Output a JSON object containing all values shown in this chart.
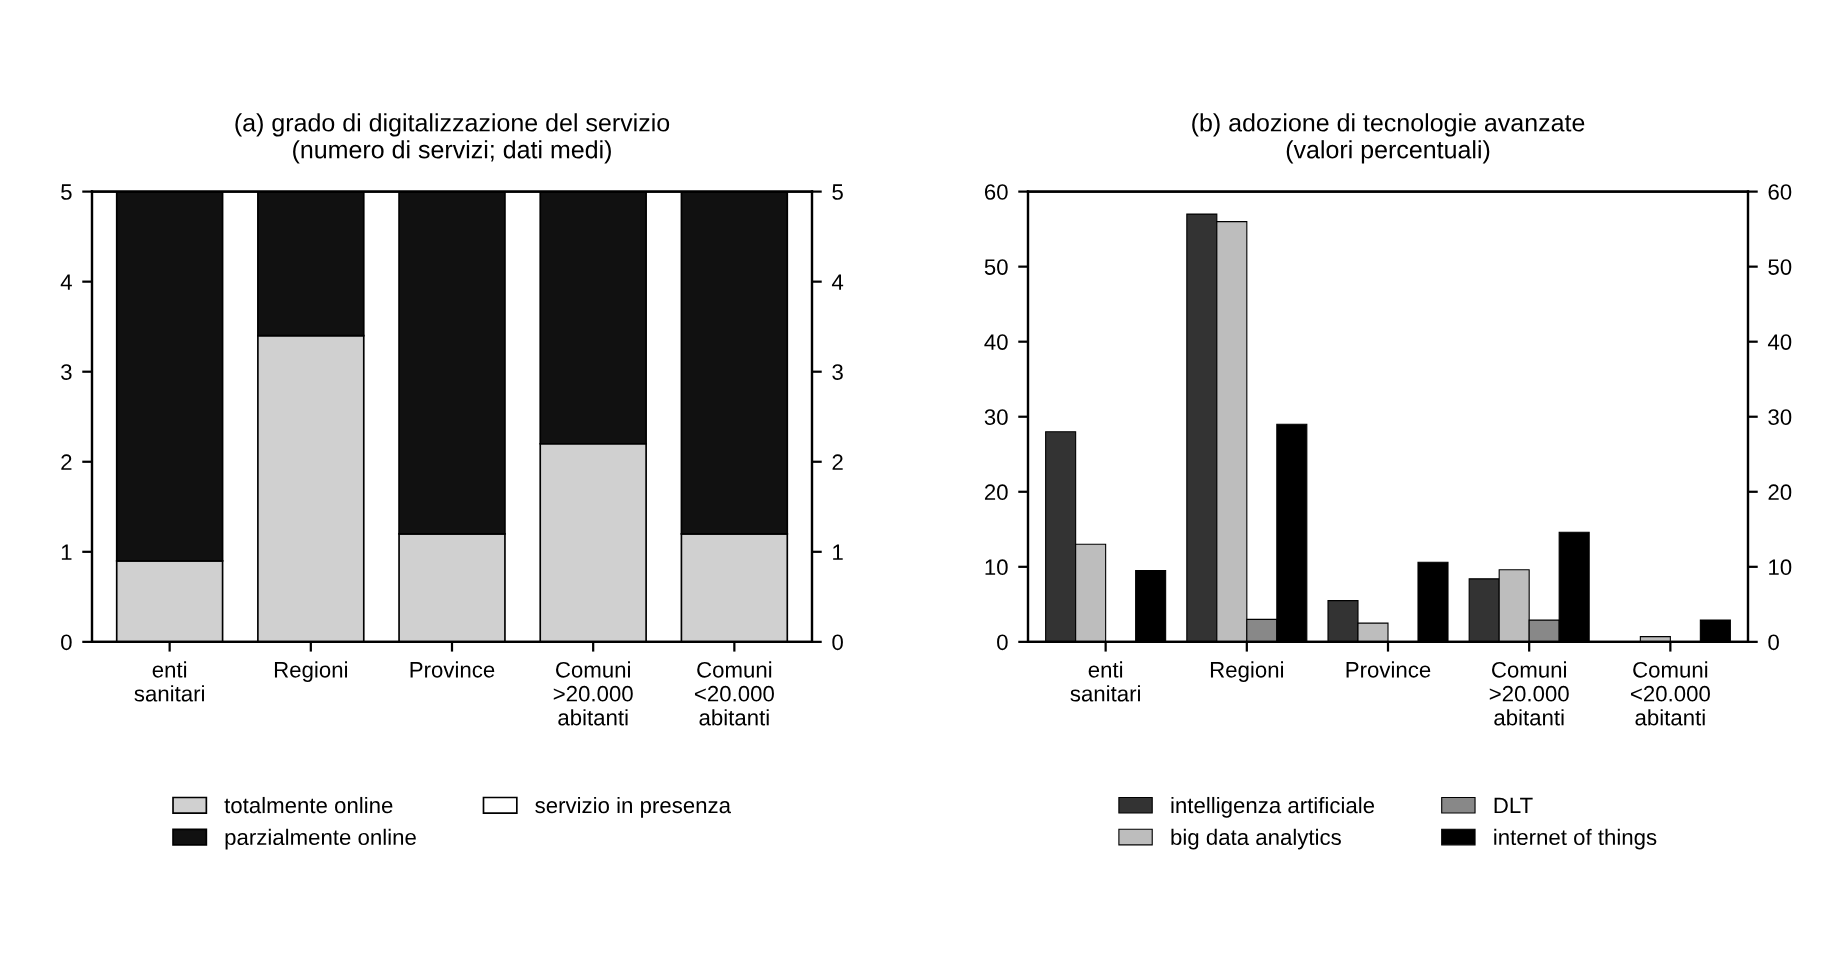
{
  "chart_data": [
    {
      "type": "bar",
      "title": "(a) grado di digitalizzazione del servizio",
      "subtitle": "(numero di servizi; dati medi)",
      "stacked": true,
      "legend": "bottom",
      "grid": false,
      "categories": [
        "enti\nsanitari",
        "Regioni",
        "Province",
        "Comuni\n>20.000\nabitanti",
        "Comuni\n<20.000\nabitanti"
      ],
      "series": [
        {
          "name": "totalmente online",
          "color": "#d0d0d0",
          "values": [
            0.9,
            3.4,
            1.2,
            2.2,
            1.2
          ]
        },
        {
          "name": "parzialmente online",
          "color": "#111111",
          "values": [
            4.1,
            1.6,
            3.8,
            2.8,
            3.8
          ]
        },
        {
          "name": "servizio in presenza",
          "color": "#ffffff",
          "values": [
            null,
            null,
            null,
            null,
            null
          ]
        }
      ],
      "ylim": [
        0,
        5
      ],
      "yticks": [
        0,
        1,
        2,
        3,
        4,
        5
      ],
      "y2lim": [
        0,
        5
      ],
      "y2ticks": [
        0,
        1,
        2,
        3,
        4,
        5
      ]
    },
    {
      "type": "bar",
      "title": "(b) adozione di tecnologie avanzate",
      "subtitle": "(valori percentuali)",
      "legend": "bottom",
      "grid": false,
      "categories": [
        "enti\nsanitari",
        "Regioni",
        "Province",
        "Comuni\n>20.000\nabitanti",
        "Comuni\n<20.000\nabitanti"
      ],
      "series": [
        {
          "name": "intelligenza artificiale",
          "color": "#333333",
          "values": [
            28,
            57,
            5.5,
            8.4,
            null
          ]
        },
        {
          "name": "big data analytics",
          "color": "#bdbdbd",
          "values": [
            13,
            56,
            2.5,
            9.6,
            0.7
          ]
        },
        {
          "name": "DLT",
          "color": "#888888",
          "values": [
            null,
            3,
            null,
            2.9,
            null
          ]
        },
        {
          "name": "internet of things",
          "color": "#000000",
          "values": [
            9.5,
            29,
            10.6,
            14.6,
            2.9
          ]
        }
      ],
      "ylim": [
        0,
        60
      ],
      "yticks": [
        0,
        10,
        20,
        30,
        40,
        50,
        60
      ],
      "y2lim": [
        0,
        60
      ],
      "y2ticks": [
        0,
        10,
        20,
        30,
        40,
        50,
        60
      ]
    }
  ]
}
